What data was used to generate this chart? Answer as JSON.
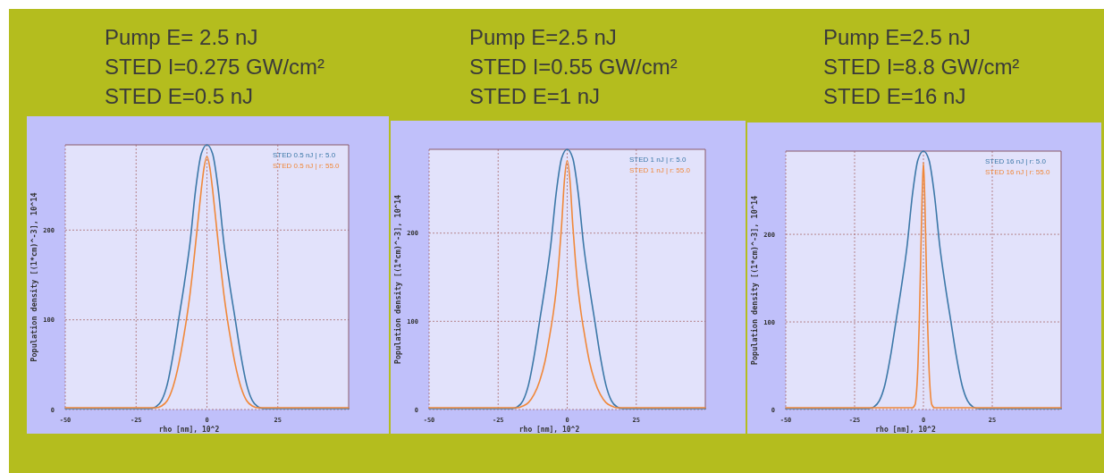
{
  "chart_data": [
    {
      "type": "line",
      "title": "Pump E= 2.5 nJ\nSTED I=0.275 GW/cm²\nSTED E=0.5 nJ",
      "xlabel": "rho [nm], 10^2",
      "ylabel": "Population density [(1*cm)^-3], 10^14",
      "xlim": [
        -50,
        50
      ],
      "xticks": [
        -50,
        -25,
        0,
        25
      ],
      "ylim": [
        0,
        295
      ],
      "yticks": [
        0,
        100,
        200
      ],
      "grid": true,
      "legend": "top right",
      "marker": "none",
      "line_style": "solid",
      "series": [
        {
          "name": "STED 0.5 nJ | r: 5.0",
          "color": "#3c78a8",
          "x": [
            -50,
            -25,
            -20,
            -18,
            -16,
            -14,
            -12,
            -10,
            -8,
            -6,
            -4,
            -2,
            0,
            2,
            4,
            6,
            8,
            10,
            12,
            14,
            16,
            18,
            20,
            25,
            50
          ],
          "values": [
            1,
            1,
            1,
            3,
            10,
            28,
            60,
            100,
            140,
            185,
            245,
            285,
            295,
            285,
            245,
            185,
            140,
            100,
            60,
            28,
            10,
            3,
            1,
            1,
            1
          ]
        },
        {
          "name": "STED 0.5 nJ | r: 55.0",
          "color": "#f0883a",
          "x": [
            -50,
            -20,
            -18,
            -16,
            -14,
            -12,
            -10,
            -8,
            -7,
            -6,
            -5,
            -4,
            -3,
            -2,
            -1,
            0,
            1,
            2,
            3,
            4,
            5,
            6,
            7,
            8,
            10,
            12,
            14,
            16,
            18,
            20,
            50
          ],
          "values": [
            2,
            2,
            2,
            4,
            10,
            25,
            50,
            85,
            105,
            128,
            155,
            185,
            215,
            245,
            270,
            282,
            270,
            245,
            215,
            185,
            155,
            128,
            105,
            85,
            50,
            25,
            10,
            4,
            2,
            2,
            2
          ]
        }
      ]
    },
    {
      "type": "line",
      "title": "Pump E=2.5 nJ\nSTED I=0.55 GW/cm²\nSTED E=1 nJ",
      "xlabel": "rho [nm], 10^2",
      "ylabel": "Population density [(1*cm)^-3], 10^14",
      "xlim": [
        -50,
        50
      ],
      "xticks": [
        -50,
        -25,
        0,
        25
      ],
      "ylim": [
        0,
        295
      ],
      "yticks": [
        0,
        100,
        200
      ],
      "grid": true,
      "legend": "top right",
      "marker": "none",
      "line_style": "solid",
      "series": [
        {
          "name": "STED 1 nJ | r: 5.0",
          "color": "#3c78a8",
          "x": [
            -50,
            -25,
            -20,
            -18,
            -16,
            -14,
            -12,
            -10,
            -8,
            -6,
            -4,
            -2,
            0,
            2,
            4,
            6,
            8,
            10,
            12,
            14,
            16,
            18,
            20,
            25,
            50
          ],
          "values": [
            1,
            1,
            1,
            3,
            10,
            28,
            60,
            100,
            140,
            185,
            245,
            285,
            295,
            285,
            245,
            185,
            140,
            100,
            60,
            28,
            10,
            3,
            1,
            1,
            1
          ]
        },
        {
          "name": "STED 1 nJ | r: 55.0",
          "color": "#f0883a",
          "x": [
            -50,
            -20,
            -18,
            -16,
            -14,
            -12,
            -10,
            -8,
            -6,
            -5,
            -4,
            -3,
            -2,
            -1,
            0,
            1,
            2,
            3,
            4,
            5,
            6,
            8,
            10,
            12,
            14,
            16,
            18,
            20,
            50
          ],
          "values": [
            2,
            2,
            2,
            4,
            8,
            17,
            32,
            55,
            90,
            110,
            135,
            168,
            210,
            260,
            282,
            260,
            210,
            168,
            135,
            110,
            90,
            55,
            32,
            17,
            8,
            4,
            2,
            2,
            2
          ]
        }
      ]
    },
    {
      "type": "line",
      "title": "Pump E=2.5 nJ\nSTED I=8.8 GW/cm²\nSTED E=16 nJ",
      "xlabel": "rho [nm], 10^2",
      "ylabel": "Population density [(1*cm)^-3], 10^14",
      "xlim": [
        -50,
        50
      ],
      "xticks": [
        -50,
        -25,
        0,
        25
      ],
      "ylim": [
        0,
        295
      ],
      "yticks": [
        0,
        100,
        200
      ],
      "grid": true,
      "legend": "top right",
      "marker": "none",
      "line_style": "solid",
      "series": [
        {
          "name": "STED 16 nJ | r: 5.0",
          "color": "#3c78a8",
          "x": [
            -50,
            -25,
            -20,
            -18,
            -16,
            -14,
            -12,
            -10,
            -8,
            -6,
            -4,
            -2,
            0,
            2,
            4,
            6,
            8,
            10,
            12,
            14,
            16,
            18,
            20,
            25,
            50
          ],
          "values": [
            1,
            1,
            1,
            3,
            10,
            28,
            60,
            100,
            140,
            185,
            245,
            285,
            295,
            285,
            245,
            185,
            140,
            100,
            60,
            28,
            10,
            3,
            1,
            1,
            1
          ]
        },
        {
          "name": "STED 16 nJ | r: 55.0",
          "color": "#f0883a",
          "x": [
            -50,
            -4,
            -3,
            -2.5,
            -2,
            -1.5,
            -1,
            -0.5,
            0,
            0.5,
            1,
            1.5,
            2,
            2.5,
            3,
            4,
            50
          ],
          "values": [
            2,
            2,
            6,
            20,
            50,
            100,
            170,
            240,
            282,
            240,
            170,
            100,
            50,
            20,
            6,
            2,
            2
          ]
        }
      ]
    }
  ]
}
